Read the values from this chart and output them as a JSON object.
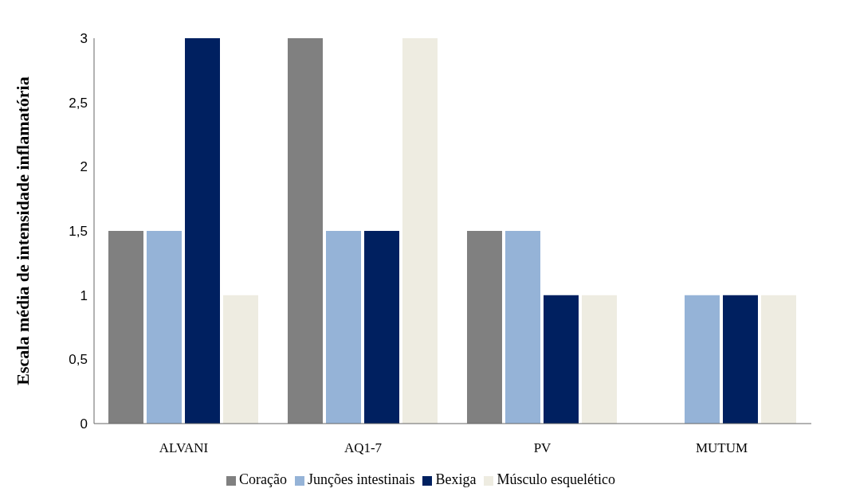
{
  "chart_data": {
    "type": "bar",
    "ylabel": "Escala média de intensidade inflamatória",
    "categories": [
      "ALVANI",
      "AQ1-7",
      "PV",
      "MUTUM"
    ],
    "series": [
      {
        "name": "Coração",
        "color": "#808080",
        "values": [
          1.5,
          3,
          1.5,
          0
        ]
      },
      {
        "name": "Junções intestinais",
        "color": "#95b3d7",
        "values": [
          1.5,
          1.5,
          1.5,
          1
        ]
      },
      {
        "name": "Bexiga",
        "color": "#002060",
        "values": [
          3,
          1.5,
          1,
          1
        ]
      },
      {
        "name": "Músculo esquelético",
        "color": "#eeece1",
        "values": [
          1,
          3,
          1,
          1
        ]
      }
    ],
    "ylim": [
      0,
      3
    ],
    "yticks": [
      0,
      {
        "value": 0.5,
        "label": "0,5"
      },
      1,
      {
        "value": 1.5,
        "label": "1,5"
      },
      2,
      {
        "value": 2.5,
        "label": "2,5"
      },
      3
    ],
    "grid": false,
    "legend": "bottom"
  }
}
